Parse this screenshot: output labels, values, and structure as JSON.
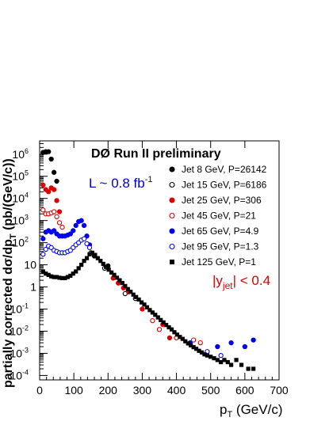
{
  "chart_data": {
    "type": "scatter",
    "title": "DØ Run II preliminary",
    "annotations": {
      "lumi_prefix": "L ~ 0.8 fb",
      "lumi_sup": "-1",
      "rapidity_prefix": "|y",
      "rapidity_sub": "jet",
      "rapidity_suffix": "| < 0.4"
    },
    "xlabel": {
      "main": "p",
      "sub": "T",
      "unit": " (GeV/c)"
    },
    "ylabel": {
      "pre": "partially corrected dσ/dp",
      "sub": "T",
      "post": " (pb/(GeV/c))"
    },
    "xlim": [
      0,
      700
    ],
    "ylim_log10": [
      -4.2,
      6.6
    ],
    "log_y": true,
    "x_ticks": [
      "0",
      "100",
      "200",
      "300",
      "400",
      "500",
      "600",
      "700"
    ],
    "y_ticks": [
      {
        "base": "10",
        "exp": "-4"
      },
      {
        "base": "10",
        "exp": "-3"
      },
      {
        "base": "10",
        "exp": "-2"
      },
      {
        "base": "10",
        "exp": "-1"
      },
      {
        "base": "1",
        "exp": ""
      },
      {
        "base": "10",
        "exp": ""
      },
      {
        "base": "10",
        "exp": "2"
      },
      {
        "base": "10",
        "exp": "3"
      },
      {
        "base": "10",
        "exp": "4"
      },
      {
        "base": "10",
        "exp": "5"
      },
      {
        "base": "10",
        "exp": "6"
      }
    ],
    "legend_position": "right",
    "series": [
      {
        "name": "Jet 8 GeV, P=26142",
        "color": "#000000",
        "marker": "circle-filled",
        "points": [
          [
            10,
            1200000.0
          ],
          [
            18,
            1300000.0
          ],
          [
            26,
            1300000.0
          ],
          [
            34,
            600000.0
          ],
          [
            42,
            150000.0
          ],
          [
            50,
            60000.0
          ],
          [
            160,
            25
          ],
          [
            200,
            9
          ]
        ]
      },
      {
        "name": "Jet 15 GeV, P=6186",
        "color": "#000000",
        "marker": "circle-open",
        "points": [
          [
            150,
            35
          ],
          [
            190,
            7
          ],
          [
            250,
            0.5
          ],
          [
            280,
            0.3
          ]
        ]
      },
      {
        "name": "Jet 25 GeV, P=306",
        "color": "#dd0000",
        "marker": "circle-filled",
        "points": [
          [
            10,
            40000.0
          ],
          [
            18,
            25000.0
          ],
          [
            26,
            20000.0
          ],
          [
            34,
            30000.0
          ],
          [
            42,
            25000.0
          ],
          [
            50,
            8000.0
          ],
          [
            58,
            2500.0
          ],
          [
            215,
            2.5
          ],
          [
            230,
            1.5
          ],
          [
            245,
            0.9
          ],
          [
            260,
            0.6
          ],
          [
            300,
            0.1
          ],
          [
            360,
            0.02
          ],
          [
            380,
            0.005
          ]
        ]
      },
      {
        "name": "Jet 45 GeV, P=21",
        "color": "#dd0000",
        "marker": "circle-open",
        "points": [
          [
            10,
            3000
          ],
          [
            18,
            2000
          ],
          [
            26,
            2000
          ],
          [
            34,
            2200
          ],
          [
            42,
            2500
          ],
          [
            50,
            1500
          ],
          [
            58,
            800
          ],
          [
            66,
            500
          ],
          [
            330,
            0.03
          ],
          [
            350,
            0.012
          ],
          [
            400,
            0.005
          ],
          [
            450,
            0.004
          ],
          [
            470,
            0.003
          ]
        ]
      },
      {
        "name": "Jet 65 GeV, P=4.9",
        "color": "#0000ee",
        "marker": "circle-filled",
        "points": [
          [
            10,
            150
          ],
          [
            18,
            300
          ],
          [
            26,
            350
          ],
          [
            34,
            300
          ],
          [
            42,
            350
          ],
          [
            50,
            250
          ],
          [
            58,
            200
          ],
          [
            66,
            200
          ],
          [
            74,
            200
          ],
          [
            82,
            220
          ],
          [
            90,
            250
          ],
          [
            98,
            350
          ],
          [
            106,
            600
          ],
          [
            114,
            900
          ],
          [
            122,
            1000
          ],
          [
            130,
            600
          ],
          [
            138,
            200
          ],
          [
            146,
            80
          ],
          [
            440,
            0.003
          ],
          [
            520,
            0.002
          ],
          [
            560,
            0.003
          ],
          [
            600,
            0.002
          ],
          [
            625,
            0.004
          ]
        ]
      },
      {
        "name": "Jet 95 GeV, P=1.3",
        "color": "#0000ee",
        "marker": "circle-open",
        "points": [
          [
            10,
            30
          ],
          [
            18,
            50
          ],
          [
            26,
            70
          ],
          [
            34,
            60
          ],
          [
            42,
            45
          ],
          [
            50,
            40
          ],
          [
            58,
            35
          ],
          [
            66,
            35
          ],
          [
            74,
            35
          ],
          [
            82,
            40
          ],
          [
            90,
            45
          ],
          [
            98,
            60
          ],
          [
            106,
            80
          ],
          [
            114,
            100
          ],
          [
            122,
            130
          ],
          [
            130,
            150
          ],
          [
            138,
            90
          ],
          [
            146,
            60
          ],
          [
            490,
            0.0012
          ],
          [
            530,
            0.0008
          ]
        ]
      },
      {
        "name": "Jet 125 GeV, P=1",
        "color": "#000000",
        "marker": "square-filled",
        "points": [
          [
            10,
            5
          ],
          [
            18,
            4
          ],
          [
            26,
            3.5
          ],
          [
            34,
            3
          ],
          [
            42,
            2.8
          ],
          [
            50,
            2.8
          ],
          [
            58,
            2.6
          ],
          [
            66,
            2.5
          ],
          [
            74,
            2.5
          ],
          [
            82,
            2.8
          ],
          [
            90,
            3.2
          ],
          [
            98,
            4
          ],
          [
            106,
            5
          ],
          [
            114,
            7
          ],
          [
            122,
            10
          ],
          [
            130,
            15
          ],
          [
            138,
            20
          ],
          [
            146,
            30
          ],
          [
            154,
            35
          ],
          [
            162,
            28
          ],
          [
            170,
            20
          ],
          [
            178,
            15
          ],
          [
            186,
            11
          ],
          [
            194,
            8
          ],
          [
            202,
            6
          ],
          [
            210,
            4.5
          ],
          [
            218,
            3.5
          ],
          [
            226,
            2.6
          ],
          [
            234,
            2
          ],
          [
            242,
            1.5
          ],
          [
            250,
            1.1
          ],
          [
            258,
            0.8
          ],
          [
            266,
            0.6
          ],
          [
            274,
            0.45
          ],
          [
            282,
            0.35
          ],
          [
            290,
            0.27
          ],
          [
            298,
            0.2
          ],
          [
            306,
            0.16
          ],
          [
            314,
            0.12
          ],
          [
            322,
            0.09
          ],
          [
            330,
            0.07
          ],
          [
            338,
            0.055
          ],
          [
            346,
            0.042
          ],
          [
            354,
            0.032
          ],
          [
            362,
            0.025
          ],
          [
            370,
            0.019
          ],
          [
            378,
            0.015
          ],
          [
            386,
            0.012
          ],
          [
            394,
            0.009
          ],
          [
            402,
            0.007
          ],
          [
            410,
            0.0055
          ],
          [
            418,
            0.0045
          ],
          [
            426,
            0.0035
          ],
          [
            434,
            0.0028
          ],
          [
            442,
            0.0023
          ],
          [
            450,
            0.0019
          ],
          [
            458,
            0.0016
          ],
          [
            466,
            0.0013
          ],
          [
            474,
            0.0011
          ],
          [
            482,
            0.0009
          ],
          [
            490,
            0.0008
          ],
          [
            500,
            0.0007
          ],
          [
            510,
            0.0006
          ],
          [
            520,
            0.0005
          ],
          [
            530,
            0.0004
          ],
          [
            540,
            0.0005
          ],
          [
            550,
            0.0004
          ],
          [
            560,
            0.0003
          ],
          [
            575,
            0.0005
          ],
          [
            590,
            0.0003
          ],
          [
            610,
            0.0002
          ],
          [
            625,
            0.0002
          ]
        ]
      }
    ]
  }
}
